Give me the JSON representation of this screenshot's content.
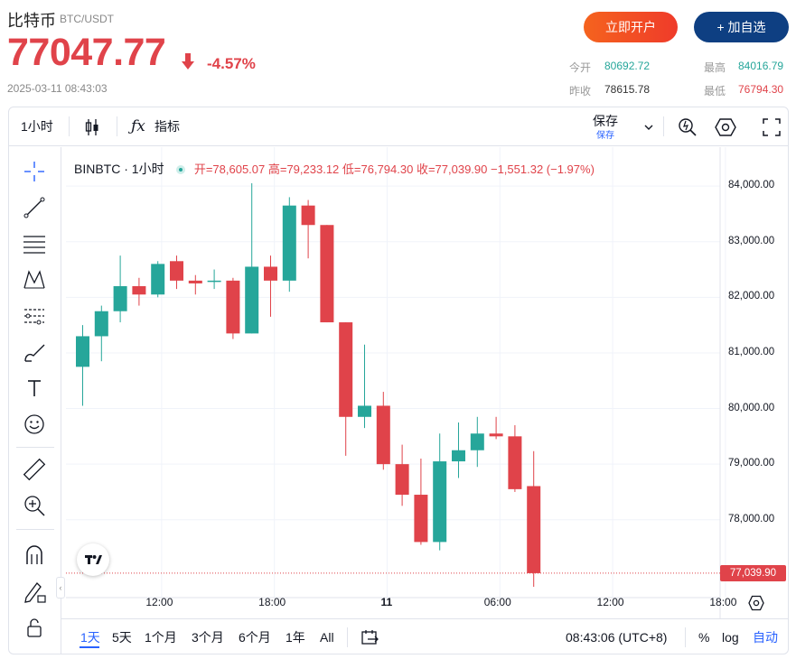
{
  "header": {
    "name": "比特币",
    "pair": "BTC/USDT",
    "price": "77047.77",
    "change_pct": "-4.57%",
    "timestamp": "2025-03-11 08:43:03",
    "open_account_label": "立即开户",
    "add_fav_label": "+ 加自选",
    "stats": {
      "open_label": "今开",
      "open_value": "80692.72",
      "high_label": "最高",
      "high_value": "84016.79",
      "prev_close_label": "昨收",
      "prev_close_value": "78615.78",
      "low_label": "最低",
      "low_value": "76794.30"
    },
    "colors": {
      "up": "#26a69a",
      "down": "#e0434a",
      "accent": "#2962ff",
      "brand_blue": "#0e3f82",
      "brand_orange": "#f5631e"
    }
  },
  "toolbar": {
    "interval": "1小时",
    "indicators": "指标",
    "save_main": "保存",
    "save_sub": "保存",
    "icons": [
      "candles-icon",
      "fx-icon",
      "chevron-down-icon",
      "alert-icon",
      "settings-icon",
      "fullscreen-icon"
    ]
  },
  "side_tools": [
    "crosshair-icon",
    "trend-line-icon",
    "fib-icon",
    "pattern-icon",
    "prediction-icon",
    "brush-icon",
    "text-icon",
    "emoji-icon",
    "ruler-icon",
    "zoom-in-icon",
    "magnet-icon",
    "lock-draw-icon",
    "lock-icon"
  ],
  "legend": {
    "symbol": "BINBTC · 1小时",
    "ohlc": "开=78,605.07  高=79,233.12  低=76,794.30  收=77,039.90  −1,551.32 (−1.97%)"
  },
  "chart_data": {
    "type": "candlestick",
    "interval": "1小时",
    "x_labels": [
      "12:00",
      "18:00",
      "11",
      "06:00",
      "12:00",
      "18:00"
    ],
    "y_ticks": [
      "84,000.00",
      "83,000.00",
      "82,000.00",
      "81,000.00",
      "80,000.00",
      "79,000.00",
      "78,000.00"
    ],
    "ylim": [
      76600,
      84700
    ],
    "last_price": "77,039.90",
    "last_value": 77039.9,
    "candles": [
      {
        "o": 80750,
        "h": 81500,
        "l": 80050,
        "c": 81300
      },
      {
        "o": 81300,
        "h": 81850,
        "l": 80850,
        "c": 81750
      },
      {
        "o": 81750,
        "h": 82750,
        "l": 81550,
        "c": 82200
      },
      {
        "o": 82200,
        "h": 82350,
        "l": 81850,
        "c": 82050
      },
      {
        "o": 82050,
        "h": 82650,
        "l": 82000,
        "c": 82600
      },
      {
        "o": 82650,
        "h": 82750,
        "l": 82150,
        "c": 82300
      },
      {
        "o": 82300,
        "h": 82400,
        "l": 82050,
        "c": 82250
      },
      {
        "o": 82300,
        "h": 82500,
        "l": 82150,
        "c": 82300
      },
      {
        "o": 82300,
        "h": 82350,
        "l": 81250,
        "c": 81350
      },
      {
        "o": 81350,
        "h": 84050,
        "l": 81350,
        "c": 82550
      },
      {
        "o": 82550,
        "h": 82750,
        "l": 81650,
        "c": 82300
      },
      {
        "o": 82300,
        "h": 83800,
        "l": 82100,
        "c": 83650
      },
      {
        "o": 83650,
        "h": 83750,
        "l": 82700,
        "c": 83300
      },
      {
        "o": 83300,
        "h": 83300,
        "l": 81550,
        "c": 81550
      },
      {
        "o": 81550,
        "h": 81550,
        "l": 79150,
        "c": 79850
      },
      {
        "o": 79850,
        "h": 81150,
        "l": 79650,
        "c": 80050
      },
      {
        "o": 80050,
        "h": 80300,
        "l": 78900,
        "c": 79000
      },
      {
        "o": 79000,
        "h": 79350,
        "l": 78250,
        "c": 78450
      },
      {
        "o": 78450,
        "h": 79100,
        "l": 77550,
        "c": 77600
      },
      {
        "o": 77600,
        "h": 79550,
        "l": 77450,
        "c": 79050
      },
      {
        "o": 79050,
        "h": 79750,
        "l": 78750,
        "c": 79250
      },
      {
        "o": 79250,
        "h": 79850,
        "l": 78950,
        "c": 79550
      },
      {
        "o": 79550,
        "h": 79850,
        "l": 79450,
        "c": 79500
      },
      {
        "o": 79500,
        "h": 79700,
        "l": 78500,
        "c": 78550
      },
      {
        "o": 78605.07,
        "h": 79233.12,
        "l": 76794.3,
        "c": 77039.9
      }
    ]
  },
  "bottom_bar": {
    "ranges": [
      "1天",
      "5天",
      "1个月",
      "3个月",
      "6个月",
      "1年",
      "All"
    ],
    "selected": "1天",
    "time": "08:43:06 (UTC+8)",
    "pct": "%",
    "log": "log",
    "auto": "自动"
  }
}
